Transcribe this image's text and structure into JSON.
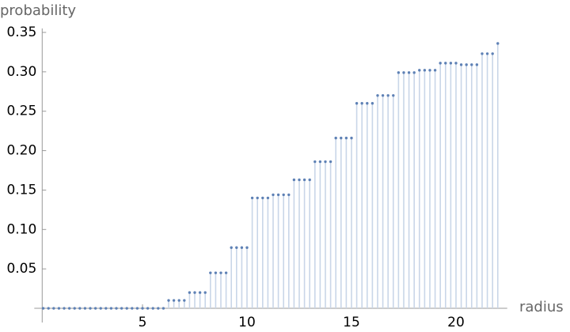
{
  "chart_data": {
    "type": "discrete",
    "xlabel": "radius",
    "ylabel": "probability",
    "color": "#5e81b5",
    "fill_color": "#c9d6e8",
    "x": [
      0.25,
      0.5,
      0.75,
      1,
      1.25,
      1.5,
      1.75,
      2,
      2.25,
      2.5,
      2.75,
      3,
      3.25,
      3.5,
      3.75,
      4,
      4.25,
      4.5,
      4.75,
      5,
      5.25,
      5.5,
      5.75,
      6,
      6.25,
      6.5,
      6.75,
      7,
      7.25,
      7.5,
      7.75,
      8,
      8.25,
      8.5,
      8.75,
      9,
      9.25,
      9.5,
      9.75,
      10,
      10.25,
      10.5,
      10.75,
      11,
      11.25,
      11.5,
      11.75,
      12,
      12.25,
      12.5,
      12.75,
      13,
      13.25,
      13.5,
      13.75,
      14,
      14.25,
      14.5,
      14.75,
      15,
      15.25,
      15.5,
      15.75,
      16,
      16.25,
      16.5,
      16.75,
      17,
      17.25,
      17.5,
      17.75,
      18,
      18.25,
      18.5,
      18.75,
      19,
      19.25,
      19.5,
      19.75,
      20,
      20.25,
      20.5,
      20.75,
      21,
      21.25,
      21.5,
      21.75,
      22
    ],
    "values": [
      0,
      0,
      0,
      0,
      0,
      0,
      0,
      0,
      0,
      0,
      0,
      0,
      0,
      0,
      0,
      0,
      0,
      0,
      0,
      0,
      0,
      0,
      0,
      0,
      0.01,
      0.01,
      0.01,
      0.01,
      0.02,
      0.02,
      0.02,
      0.02,
      0.045,
      0.045,
      0.045,
      0.045,
      0.077,
      0.077,
      0.077,
      0.077,
      0.14,
      0.14,
      0.14,
      0.14,
      0.144,
      0.144,
      0.144,
      0.144,
      0.163,
      0.163,
      0.163,
      0.163,
      0.186,
      0.186,
      0.186,
      0.186,
      0.216,
      0.216,
      0.216,
      0.216,
      0.26,
      0.26,
      0.26,
      0.26,
      0.27,
      0.27,
      0.27,
      0.27,
      0.299,
      0.299,
      0.299,
      0.299,
      0.302,
      0.302,
      0.302,
      0.302,
      0.311,
      0.311,
      0.311,
      0.311,
      0.309,
      0.309,
      0.309,
      0.309,
      0.323,
      0.323,
      0.323,
      0.336
    ],
    "xlim": [
      0.2,
      22.3
    ],
    "ylim": [
      -0.01,
      0.355
    ],
    "xticks": [
      5,
      10,
      15,
      20
    ],
    "yticks": [
      0.05,
      {
        "value": 0.1,
        "label": "0.10"
      },
      0.15,
      {
        "value": 0.2,
        "label": "0.20"
      },
      0.25,
      {
        "value": 0.3,
        "label": "0.30"
      },
      0.35
    ]
  }
}
